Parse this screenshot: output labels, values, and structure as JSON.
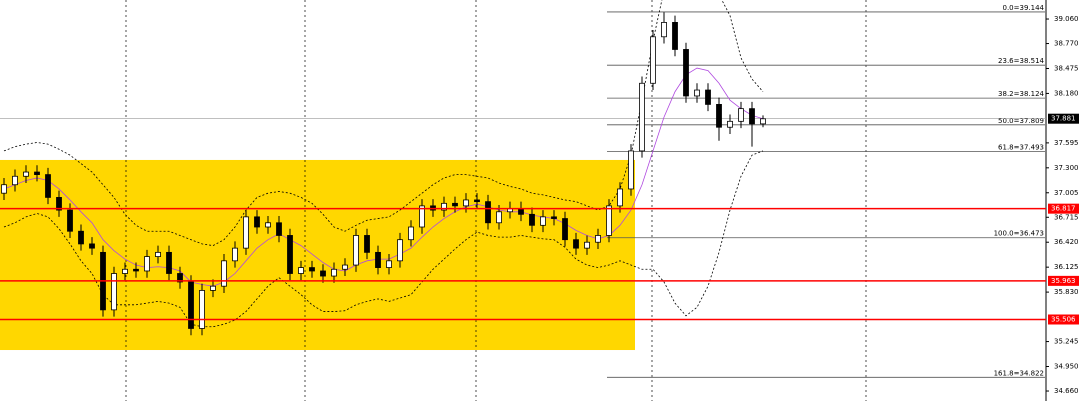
{
  "chart_data": {
    "type": "candlestick",
    "ylim": [
      34.542,
      39.285
    ],
    "yticks": [
      {
        "value": 39.06,
        "label": "39.060"
      },
      {
        "value": 38.77,
        "label": "38.770"
      },
      38.475,
      {
        "value": 38.18,
        "label": "38.180"
      },
      37.595,
      {
        "value": 37.3,
        "label": "37.300"
      },
      37.005,
      36.715,
      {
        "value": 36.42,
        "label": "36.420"
      },
      36.125,
      {
        "value": 35.83,
        "label": "35.830"
      },
      35.245,
      {
        "value": 34.95,
        "label": "34.950"
      },
      {
        "value": 34.66,
        "label": "34.660"
      }
    ],
    "zone": [
      35.145,
      37.393
    ],
    "zone_color": "#ffd700",
    "levels": [
      36.817,
      35.963,
      35.506
    ],
    "level_color": "#ff0000",
    "last_price": 37.881,
    "fib_levels": [
      {
        "value": 39.144,
        "label": "0.0=39.144"
      },
      {
        "value": 38.514,
        "label": "23.6=38.514"
      },
      {
        "value": 38.124,
        "label": "38.2=38.124"
      },
      {
        "value": 37.809,
        "label": "50.0=37.809"
      },
      {
        "value": 37.493,
        "label": "61.8=37.493"
      },
      {
        "value": 36.473,
        "label": "100.0=36.473"
      },
      {
        "value": 34.822,
        "label": "161.8=34.822"
      }
    ],
    "open": [
      37.0,
      37.1,
      37.2,
      37.25,
      37.22,
      36.95,
      36.8,
      36.55,
      36.4,
      36.3,
      35.62,
      36.05,
      36.1,
      36.08,
      36.25,
      36.3,
      36.05,
      35.95,
      35.4,
      35.85,
      35.9,
      36.2,
      36.35,
      36.72,
      36.6,
      36.65,
      36.5,
      36.05,
      36.12,
      36.08,
      36.02,
      36.1,
      36.15,
      36.5,
      36.3,
      36.12,
      36.2,
      36.45,
      36.6,
      36.85,
      36.8,
      36.88,
      36.85,
      36.92,
      36.9,
      36.65,
      36.78,
      36.82,
      36.75,
      36.62,
      36.72,
      36.7,
      36.45,
      36.35,
      36.42,
      36.5,
      36.85,
      37.05,
      37.5,
      38.3,
      38.85,
      39.02,
      38.7,
      38.15,
      38.22,
      38.05,
      37.78,
      37.85,
      38.0,
      37.82
    ],
    "high": [
      37.18,
      37.28,
      37.33,
      37.33,
      37.3,
      37.03,
      36.88,
      36.63,
      36.48,
      36.38,
      36.13,
      36.18,
      36.18,
      36.33,
      36.38,
      36.38,
      36.13,
      36.03,
      35.93,
      35.98,
      36.28,
      36.43,
      36.8,
      36.8,
      36.73,
      36.73,
      36.58,
      36.2,
      36.2,
      36.16,
      36.18,
      36.23,
      36.58,
      36.58,
      36.38,
      36.28,
      36.53,
      36.68,
      36.93,
      36.93,
      36.96,
      36.96,
      37.0,
      37.0,
      36.98,
      36.86,
      36.9,
      36.9,
      36.83,
      36.8,
      36.8,
      36.78,
      36.53,
      36.5,
      36.58,
      36.93,
      37.13,
      37.58,
      38.38,
      38.93,
      39.14,
      39.1,
      38.78,
      38.3,
      38.3,
      38.13,
      37.93,
      38.08,
      38.08,
      37.92
    ],
    "low": [
      36.92,
      37.02,
      37.12,
      37.14,
      36.87,
      36.72,
      36.47,
      36.32,
      36.27,
      35.54,
      35.54,
      35.97,
      36.0,
      36.0,
      36.17,
      35.97,
      35.87,
      35.32,
      35.32,
      35.77,
      35.82,
      36.12,
      36.27,
      36.52,
      36.52,
      36.42,
      35.97,
      35.97,
      36.0,
      35.94,
      35.94,
      36.02,
      36.07,
      36.22,
      36.04,
      36.04,
      36.12,
      36.37,
      36.52,
      36.72,
      36.72,
      36.77,
      36.77,
      36.82,
      36.57,
      36.57,
      36.7,
      36.67,
      36.54,
      36.54,
      36.62,
      36.37,
      36.27,
      36.27,
      36.34,
      36.42,
      36.77,
      36.97,
      37.42,
      38.22,
      38.77,
      38.62,
      38.07,
      38.07,
      37.97,
      37.62,
      37.7,
      37.77,
      37.55,
      37.78
    ],
    "close": [
      37.1,
      37.2,
      37.25,
      37.22,
      36.95,
      36.8,
      36.55,
      36.4,
      36.35,
      35.62,
      36.05,
      36.1,
      36.08,
      36.25,
      36.3,
      36.05,
      35.95,
      35.4,
      35.85,
      35.9,
      36.2,
      36.35,
      36.72,
      36.6,
      36.65,
      36.5,
      36.05,
      36.12,
      36.08,
      36.02,
      36.1,
      36.15,
      36.5,
      36.3,
      36.12,
      36.2,
      36.45,
      36.6,
      36.85,
      36.8,
      36.88,
      36.85,
      36.92,
      36.9,
      36.65,
      36.78,
      36.82,
      36.75,
      36.62,
      36.72,
      36.7,
      36.45,
      36.35,
      36.42,
      36.5,
      36.85,
      37.05,
      37.5,
      38.3,
      38.85,
      39.02,
      38.7,
      38.15,
      38.22,
      38.05,
      37.78,
      37.85,
      38.0,
      37.82,
      37.88
    ],
    "overlays": [
      {
        "color": "#b04ae0",
        "dashed": false,
        "values": [
          37.05,
          37.1,
          37.15,
          37.18,
          37.15,
          37.05,
          36.92,
          36.78,
          36.65,
          36.45,
          36.32,
          36.22,
          36.15,
          36.12,
          36.13,
          36.12,
          36.08,
          35.95,
          35.92,
          35.9,
          35.95,
          36.05,
          36.2,
          36.35,
          36.45,
          36.52,
          36.45,
          36.38,
          36.28,
          36.18,
          36.1,
          36.08,
          36.15,
          36.2,
          36.22,
          36.22,
          36.28,
          36.35,
          36.48,
          36.6,
          36.7,
          36.78,
          36.84,
          36.87,
          36.84,
          36.8,
          36.78,
          36.78,
          36.74,
          36.72,
          36.7,
          36.64,
          36.56,
          36.5,
          36.46,
          36.5,
          36.62,
          36.8,
          37.1,
          37.5,
          37.9,
          38.2,
          38.4,
          38.48,
          38.45,
          38.3,
          38.1,
          38.0,
          37.92,
          37.88
        ]
      },
      {
        "color": "#000000",
        "dashed": true,
        "values": [
          37.5,
          37.55,
          37.58,
          37.6,
          37.58,
          37.52,
          37.45,
          37.35,
          37.25,
          37.1,
          36.95,
          36.75,
          36.62,
          36.55,
          36.55,
          36.55,
          36.5,
          36.45,
          36.4,
          36.38,
          36.45,
          36.6,
          36.8,
          36.95,
          37.0,
          37.02,
          37.0,
          36.95,
          36.88,
          36.75,
          36.6,
          36.55,
          36.62,
          36.68,
          36.7,
          36.72,
          36.8,
          36.9,
          37.0,
          37.1,
          37.18,
          37.22,
          37.22,
          37.2,
          37.18,
          37.12,
          37.08,
          37.05,
          37.0,
          36.98,
          36.95,
          36.92,
          36.9,
          36.85,
          36.8,
          36.85,
          37.05,
          37.45,
          38.1,
          38.8,
          39.4,
          39.7,
          39.8,
          39.75,
          39.6,
          39.35,
          39.1,
          38.6,
          38.35,
          38.2
        ]
      },
      {
        "color": "#000000",
        "dashed": true,
        "values": [
          36.6,
          36.65,
          36.72,
          36.76,
          36.72,
          36.58,
          36.4,
          36.2,
          36.05,
          35.8,
          35.68,
          35.68,
          35.68,
          35.7,
          35.72,
          35.7,
          35.65,
          35.45,
          35.42,
          35.42,
          35.45,
          35.5,
          35.6,
          35.75,
          35.9,
          36.0,
          35.9,
          35.8,
          35.68,
          35.6,
          35.6,
          35.61,
          35.68,
          35.72,
          35.75,
          35.72,
          35.76,
          35.8,
          35.95,
          36.1,
          36.22,
          36.34,
          36.45,
          36.54,
          36.5,
          36.48,
          36.48,
          36.5,
          36.48,
          36.46,
          36.45,
          36.36,
          36.22,
          36.15,
          36.12,
          36.15,
          36.2,
          36.15,
          36.1,
          36.1,
          35.95,
          35.7,
          35.55,
          35.65,
          35.9,
          36.3,
          36.8,
          37.2,
          37.45,
          37.5
        ]
      }
    ]
  }
}
